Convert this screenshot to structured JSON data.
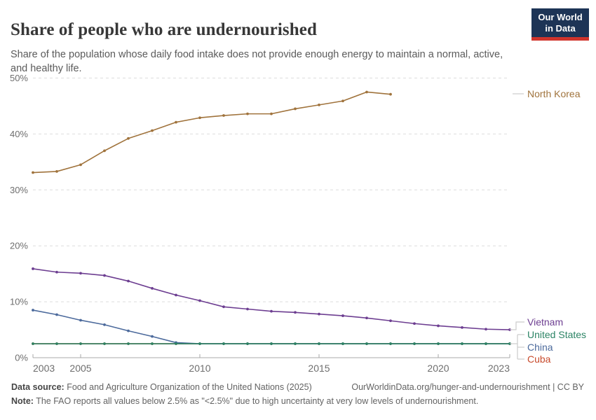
{
  "header": {
    "title": "Share of people who are undernourished",
    "subtitle": "Share of the population whose daily food intake does not provide enough energy to maintain a normal, active, and healthy life.",
    "logo": {
      "line1": "Our World",
      "line2": "in Data"
    }
  },
  "chart_data": {
    "type": "line",
    "x": [
      2003,
      2004,
      2005,
      2006,
      2007,
      2008,
      2009,
      2010,
      2011,
      2012,
      2013,
      2014,
      2015,
      2016,
      2017,
      2018,
      2019,
      2020,
      2021,
      2022,
      2023
    ],
    "series": [
      {
        "name": "North Korea",
        "color": "#A0733C",
        "values": [
          33.1,
          33.3,
          34.5,
          37.0,
          39.2,
          40.6,
          42.1,
          42.9,
          43.3,
          43.6,
          43.6,
          44.5,
          45.2,
          45.9,
          47.5,
          47.1,
          null,
          null,
          null,
          null,
          null
        ]
      },
      {
        "name": "Vietnam",
        "color": "#6D3E91",
        "values": [
          15.9,
          15.3,
          15.1,
          14.7,
          13.7,
          12.4,
          11.2,
          10.2,
          9.1,
          8.7,
          8.3,
          8.1,
          7.8,
          7.5,
          7.1,
          6.6,
          6.1,
          5.7,
          5.4,
          5.1,
          5.0
        ]
      },
      {
        "name": "United States",
        "color": "#2C8465",
        "values": [
          2.5,
          2.5,
          2.5,
          2.5,
          2.5,
          2.5,
          2.5,
          2.5,
          2.5,
          2.5,
          2.5,
          2.5,
          2.5,
          2.5,
          2.5,
          2.5,
          2.5,
          2.5,
          2.5,
          2.5,
          2.5
        ]
      },
      {
        "name": "China",
        "color": "#4C6A9C",
        "values": [
          8.5,
          7.7,
          6.7,
          5.9,
          4.8,
          3.8,
          2.7,
          2.5,
          2.5,
          2.5,
          2.5,
          2.5,
          2.5,
          2.5,
          2.5,
          2.5,
          2.5,
          2.5,
          2.5,
          2.5,
          2.5
        ]
      },
      {
        "name": "Cuba",
        "color": "#C84B2D",
        "values": [
          2.5,
          2.5,
          2.5,
          2.5,
          2.5,
          2.5,
          2.5,
          2.5,
          2.5,
          2.5,
          2.5,
          2.5,
          2.5,
          2.5,
          2.5,
          2.5,
          2.5,
          2.5,
          2.5,
          2.5,
          2.5
        ]
      }
    ],
    "title": "Share of people who are undernourished",
    "xlabel": "",
    "ylabel": "",
    "ylim": [
      0,
      50
    ],
    "yticks": [
      0,
      10,
      20,
      30,
      40,
      50
    ],
    "ytick_suffix": "%",
    "xticks": [
      2003,
      2005,
      2010,
      2015,
      2020,
      2023
    ],
    "grid": "horizontal-dashed",
    "legend_position": "right",
    "grid_color": "#dddddd",
    "axis_color": "#a8a8a8",
    "tick_label_color": "#6e6e6e",
    "connector_color": "#cccccc"
  },
  "footer": {
    "datasource_label": "Data source:",
    "datasource_value": "Food and Agriculture Organization of the United Nations (2025)",
    "link": "OurWorldinData.org/hunger-and-undernourishment | CC BY",
    "note_label": "Note:",
    "note_text": "The FAO reports all values below 2.5% as \"<2.5%\" due to high uncertainty at very low levels of undernourishment."
  }
}
